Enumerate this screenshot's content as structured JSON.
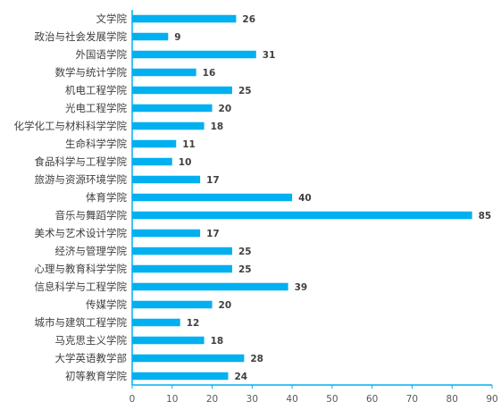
{
  "chart_data": {
    "type": "bar",
    "orientation": "horizontal",
    "categories": [
      "文学院",
      "政治与社会发展学院",
      "外国语学院",
      "数学与统计学院",
      "机电工程学院",
      "光电工程学院",
      "化学化工与材料科学学院",
      "生命科学学院",
      "食品科学与工程学院",
      "旅游与资源环境学院",
      "体育学院",
      "音乐与舞蹈学院",
      "美术与艺术设计学院",
      "经济与管理学院",
      "心理与教育科学学院",
      "信息科学与工程学院",
      "传媒学院",
      "城市与建筑工程学院",
      "马克思主义学院",
      "大学英语教学部",
      "初等教育学院"
    ],
    "values": [
      26,
      9,
      31,
      16,
      25,
      20,
      18,
      11,
      10,
      17,
      40,
      85,
      17,
      25,
      25,
      39,
      20,
      12,
      18,
      28,
      24
    ],
    "xlim": [
      0,
      90
    ],
    "xticks": [
      0,
      10,
      20,
      30,
      40,
      50,
      60,
      70,
      80,
      90
    ],
    "title": "",
    "xlabel": "",
    "ylabel": "",
    "grid": false,
    "legend": "none",
    "bar_color": "#00b0f0",
    "axis_color": "#00b0f0"
  }
}
